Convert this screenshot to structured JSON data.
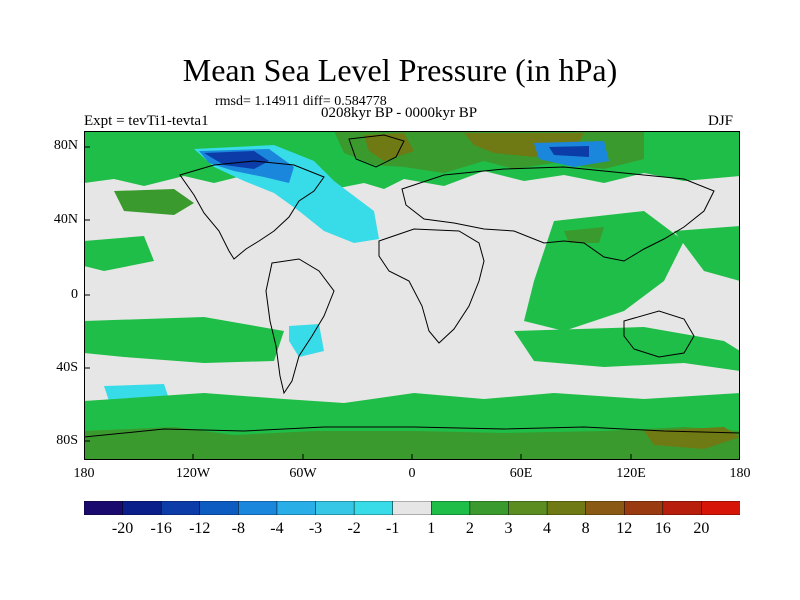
{
  "title": "Mean Sea Level Pressure (in hPa)",
  "stats": "rmsd= 1.14911 diff= 0.584778",
  "period": "0208kyr BP - 0000kyr BP",
  "left_label": "Expt = tevTi1-tevta1",
  "right_label": "DJF",
  "lat_ticks": [
    "80N",
    "40N",
    "0",
    "40S",
    "80S"
  ],
  "lon_ticks": [
    "180",
    "120W",
    "60W",
    "0",
    "60E",
    "120E",
    "180"
  ],
  "colorbar": {
    "colors": [
      "#1a0a6e",
      "#0a1f8a",
      "#0b3ca8",
      "#0d5cc2",
      "#1a86dc",
      "#2aaee8",
      "#36c6e6",
      "#38dce8",
      "#e6e6e6",
      "#1fbe48",
      "#3a9a2e",
      "#5c8d20",
      "#6f7a14",
      "#8a5a14",
      "#9a3a10",
      "#b81e0c",
      "#d61408"
    ],
    "labels": [
      "-20",
      "-16",
      "-12",
      "-8",
      "-4",
      "-3",
      "-2",
      "-1",
      "1",
      "2",
      "3",
      "4",
      "8",
      "12",
      "16",
      "20"
    ]
  },
  "map_colors": {
    "background": "#e6e6e6",
    "positive_weak": "#1fbe48",
    "positive_mid": "#3a9a2e",
    "positive_strong": "#6f7a14",
    "negative_weak": "#38dce8",
    "negative_mid": "#1a86dc",
    "negative_strong": "#0b3ca8",
    "coast": "#000000"
  }
}
